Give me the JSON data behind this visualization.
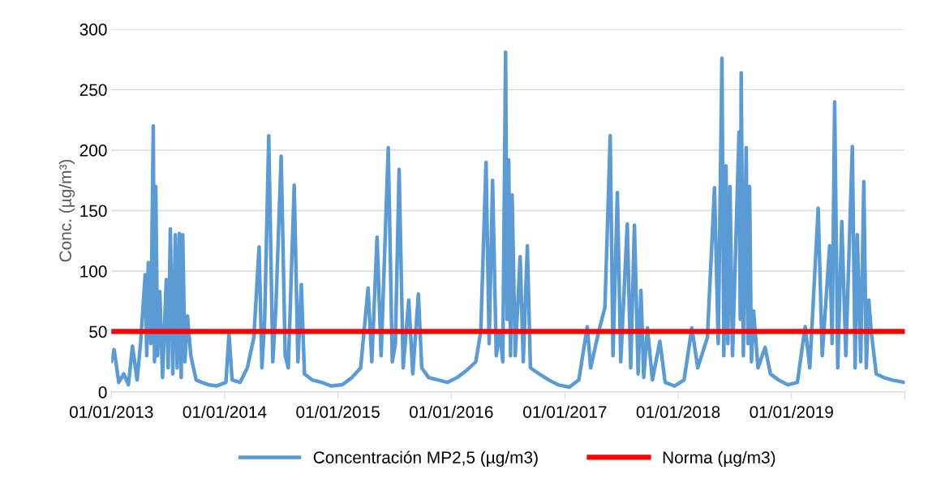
{
  "chart_data": {
    "type": "line",
    "ylabel": "Conc. (µg/m³)",
    "ylim": [
      0,
      300
    ],
    "yticks": [
      0,
      50,
      100,
      150,
      200,
      250,
      300
    ],
    "xlim": [
      "2013-01-01",
      "2020-01-01"
    ],
    "xticks": [
      {
        "value": "2013-01-01",
        "label": "01/01/2013"
      },
      {
        "value": "2014-01-01",
        "label": "01/01/2014"
      },
      {
        "value": "2015-01-01",
        "label": "01/01/2015"
      },
      {
        "value": "2016-01-01",
        "label": "01/01/2016"
      },
      {
        "value": "2017-01-01",
        "label": "01/01/2017"
      },
      {
        "value": "2018-01-01",
        "label": "01/01/2018"
      },
      {
        "value": "2019-01-01",
        "label": "01/01/2019"
      },
      {
        "value": "2020-01-01",
        "label": null
      }
    ],
    "grid": "y",
    "legend": "bottom",
    "series": [
      {
        "name": "Concentración MP2,5 (µg/m3)",
        "color": "#5b9bd5",
        "x": [
          "2013-01-01",
          "2013-01-10",
          "2013-01-25",
          "2013-02-10",
          "2013-02-25",
          "2013-03-10",
          "2013-03-25",
          "2013-04-05",
          "2013-04-20",
          "2013-04-25",
          "2013-04-30",
          "2013-05-08",
          "2013-05-16",
          "2013-05-20",
          "2013-05-24",
          "2013-05-30",
          "2013-06-06",
          "2013-06-15",
          "2013-06-27",
          "2013-07-03",
          "2013-07-10",
          "2013-07-18",
          "2013-07-26",
          "2013-08-01",
          "2013-08-08",
          "2013-08-14",
          "2013-08-19",
          "2013-08-26",
          "2013-09-03",
          "2013-09-14",
          "2013-10-01",
          "2013-10-20",
          "2013-11-10",
          "2013-12-05",
          "2014-01-05",
          "2014-01-15",
          "2014-01-25",
          "2014-02-20",
          "2014-03-15",
          "2014-04-05",
          "2014-04-22",
          "2014-05-01",
          "2014-05-10",
          "2014-05-23",
          "2014-06-05",
          "2014-06-15",
          "2014-07-02",
          "2014-07-15",
          "2014-07-25",
          "2014-08-13",
          "2014-08-25",
          "2014-09-05",
          "2014-09-15",
          "2014-10-10",
          "2014-11-10",
          "2014-12-10",
          "2015-01-15",
          "2015-02-15",
          "2015-03-15",
          "2015-04-08",
          "2015-04-20",
          "2015-05-07",
          "2015-05-20",
          "2015-06-12",
          "2015-06-25",
          "2015-07-05",
          "2015-07-17",
          "2015-07-30",
          "2015-08-17",
          "2015-08-30",
          "2015-09-17",
          "2015-09-28",
          "2015-10-20",
          "2015-11-20",
          "2015-12-20",
          "2016-01-20",
          "2016-02-20",
          "2016-03-20",
          "2016-04-05",
          "2016-04-22",
          "2016-05-02",
          "2016-05-13",
          "2016-05-25",
          "2016-06-05",
          "2016-06-15",
          "2016-06-24",
          "2016-06-29",
          "2016-07-04",
          "2016-07-10",
          "2016-07-15",
          "2016-07-25",
          "2016-08-10",
          "2016-08-20",
          "2016-09-02",
          "2016-09-12",
          "2016-10-10",
          "2016-11-10",
          "2016-12-10",
          "2017-01-15",
          "2017-02-15",
          "2017-03-14",
          "2017-03-25",
          "2017-04-20",
          "2017-05-10",
          "2017-05-27",
          "2017-06-05",
          "2017-06-19",
          "2017-06-30",
          "2017-07-21",
          "2017-08-01",
          "2017-08-13",
          "2017-08-25",
          "2017-09-03",
          "2017-09-12",
          "2017-09-24",
          "2017-10-10",
          "2017-11-03",
          "2017-11-20",
          "2017-12-20",
          "2018-01-20",
          "2018-02-14",
          "2018-03-05",
          "2018-04-05",
          "2018-04-28",
          "2018-05-10",
          "2018-05-22",
          "2018-05-28",
          "2018-06-04",
          "2018-06-10",
          "2018-06-17",
          "2018-06-25",
          "2018-07-16",
          "2018-07-20",
          "2018-07-23",
          "2018-07-30",
          "2018-08-08",
          "2018-08-14",
          "2018-08-19",
          "2018-08-25",
          "2018-09-01",
          "2018-09-15",
          "2018-10-08",
          "2018-10-25",
          "2018-11-20",
          "2018-12-20",
          "2019-01-20",
          "2019-02-14",
          "2019-03-01",
          "2019-03-28",
          "2019-04-10",
          "2019-05-04",
          "2019-05-12",
          "2019-05-20",
          "2019-05-30",
          "2019-06-12",
          "2019-06-25",
          "2019-07-16",
          "2019-07-25",
          "2019-08-01",
          "2019-08-12",
          "2019-08-22",
          "2019-08-30",
          "2019-09-07",
          "2019-09-15",
          "2019-10-01",
          "2019-10-25",
          "2019-11-20",
          "2019-12-31"
        ],
        "values": [
          25,
          35,
          8,
          15,
          6,
          38,
          10,
          40,
          97,
          30,
          107,
          40,
          220,
          25,
          170,
          30,
          83,
          12,
          93,
          20,
          135,
          15,
          130,
          20,
          131,
          12,
          130,
          25,
          63,
          30,
          10,
          8,
          6,
          5,
          8,
          48,
          10,
          8,
          20,
          45,
          120,
          20,
          60,
          212,
          25,
          70,
          195,
          30,
          20,
          171,
          25,
          89,
          15,
          10,
          8,
          5,
          6,
          12,
          20,
          86,
          25,
          128,
          30,
          202,
          25,
          40,
          184,
          20,
          76,
          15,
          81,
          20,
          12,
          10,
          8,
          12,
          18,
          25,
          50,
          190,
          40,
          175,
          30,
          50,
          25,
          281,
          60,
          192,
          30,
          163,
          30,
          112,
          25,
          121,
          20,
          15,
          10,
          6,
          4,
          10,
          54,
          20,
          50,
          70,
          212,
          30,
          165,
          25,
          139,
          20,
          138,
          15,
          84,
          12,
          53,
          10,
          42,
          8,
          5,
          10,
          53,
          20,
          45,
          169,
          40,
          276,
          30,
          187,
          40,
          170,
          30,
          215,
          60,
          264,
          30,
          202,
          40,
          170,
          25,
          67,
          20,
          37,
          15,
          10,
          6,
          8,
          54,
          20,
          152,
          30,
          121,
          40,
          240,
          20,
          141,
          30,
          203,
          20,
          130,
          25,
          174,
          20,
          76,
          50,
          15,
          12,
          10,
          8
        ]
      },
      {
        "name": "Norma (µg/m3)",
        "color": "#ff0000",
        "x": [
          "2013-01-01",
          "2019-12-31"
        ],
        "values": [
          50,
          50
        ]
      }
    ]
  }
}
